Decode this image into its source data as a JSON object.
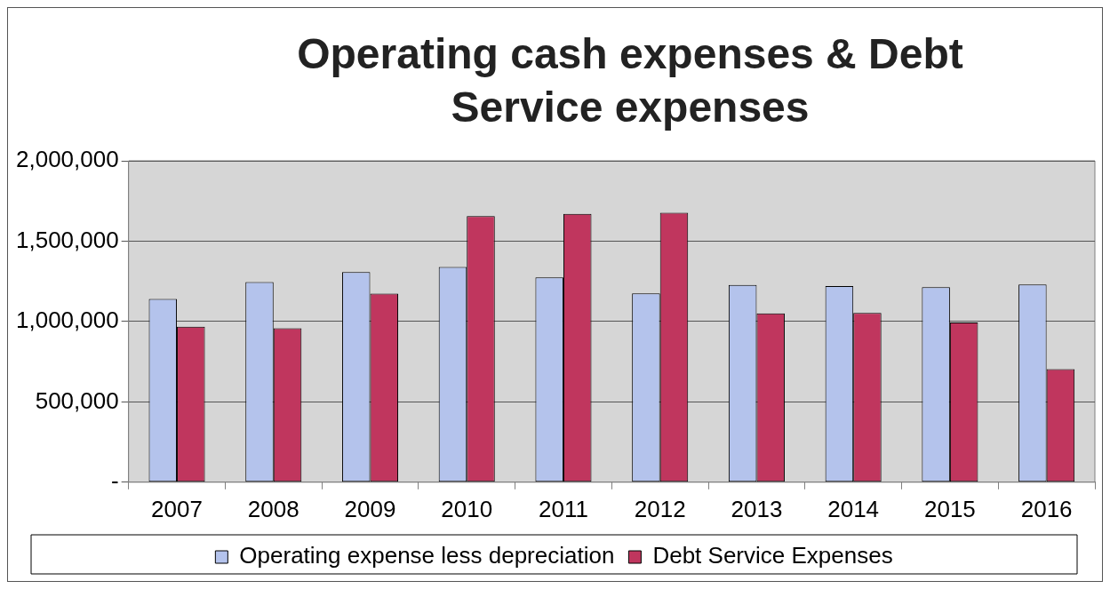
{
  "chart_data": {
    "type": "bar",
    "title": "Operating cash expenses & Debt Service expenses",
    "categories": [
      "2007",
      "2008",
      "2009",
      "2010",
      "2011",
      "2012",
      "2013",
      "2014",
      "2015",
      "2016"
    ],
    "series": [
      {
        "name": "Operating expense less depreciation",
        "color": "#b4c3ec",
        "values": [
          1140000,
          1245000,
          1308000,
          1340000,
          1275000,
          1175000,
          1228000,
          1220000,
          1214000,
          1230000
        ]
      },
      {
        "name": "Debt Service Expenses",
        "color": "#c0365e",
        "values": [
          968000,
          958000,
          1174000,
          1656000,
          1670000,
          1677000,
          1050000,
          1054000,
          994000,
          704000
        ]
      }
    ],
    "ylim": [
      0,
      2000000
    ],
    "yticks": [
      {
        "value": 0,
        "label": "-"
      },
      {
        "value": 500000,
        "label": "500,000"
      },
      {
        "value": 1000000,
        "label": "1,000,000"
      },
      {
        "value": 1500000,
        "label": "1,500,000"
      },
      {
        "value": 2000000,
        "label": "2,000,000"
      }
    ],
    "grid": "y",
    "legend": "bottom"
  }
}
